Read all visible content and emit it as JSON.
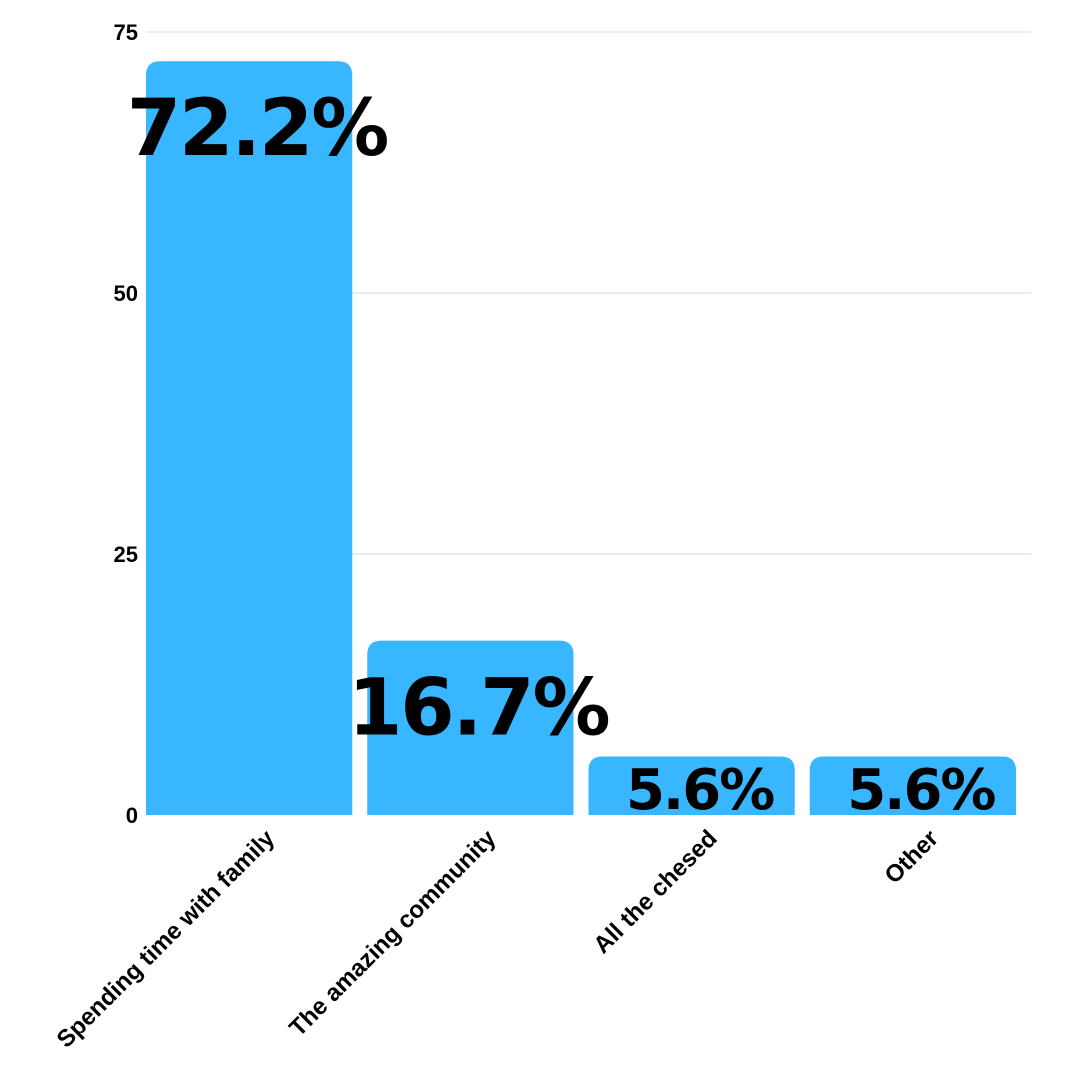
{
  "chart_data": {
    "type": "bar",
    "categories": [
      "Spending time with family",
      "The amazing community",
      "All the chesed",
      "Other"
    ],
    "values": [
      72.2,
      16.7,
      5.6,
      5.6
    ],
    "data_labels": [
      "72.2%",
      "16.7%",
      "5.6%",
      "5.6%"
    ],
    "title": "",
    "xlabel": "",
    "ylabel": "",
    "ylim": [
      0,
      75
    ],
    "yticks": [
      0,
      25,
      50,
      75
    ],
    "ytick_labels": [
      "0",
      "25",
      "50",
      "75"
    ],
    "grid": true,
    "legend": "none",
    "bar_color": "#38b6ff"
  }
}
